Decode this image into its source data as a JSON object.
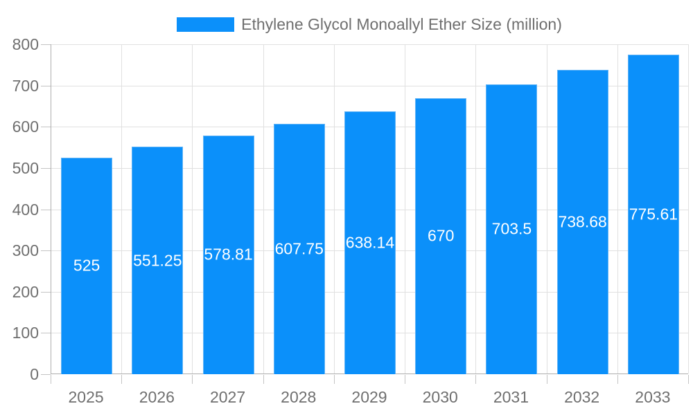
{
  "legend": {
    "label": "Ethylene Glycol Monoallyl Ether Size (million)"
  },
  "colors": {
    "bar": "#0b90fa",
    "bar_border": "#64b5f6",
    "grid": "#e0e0e0",
    "axis": "#adadad",
    "tick": "#c4c4c4",
    "tick_label": "#6f6f6f",
    "value_label": "#ffffff",
    "background": "#ffffff"
  },
  "chart_data": {
    "type": "bar",
    "title": "Ethylene Glycol Monoallyl Ether Size (million)",
    "categories": [
      "2025",
      "2026",
      "2027",
      "2028",
      "2029",
      "2030",
      "2031",
      "2032",
      "2033"
    ],
    "values": [
      525,
      551.25,
      578.81,
      607.75,
      638.14,
      670,
      703.5,
      738.68,
      775.61
    ],
    "value_labels": [
      "525",
      "551.25",
      "578.81",
      "607.75",
      "638.14",
      "670",
      "703.5",
      "738.68",
      "775.61"
    ],
    "xlabel": "",
    "ylabel": "",
    "ylim": [
      0,
      800
    ],
    "yticks": [
      0,
      100,
      200,
      300,
      400,
      500,
      600,
      700,
      800
    ],
    "grid": true,
    "legend_position": "top"
  }
}
